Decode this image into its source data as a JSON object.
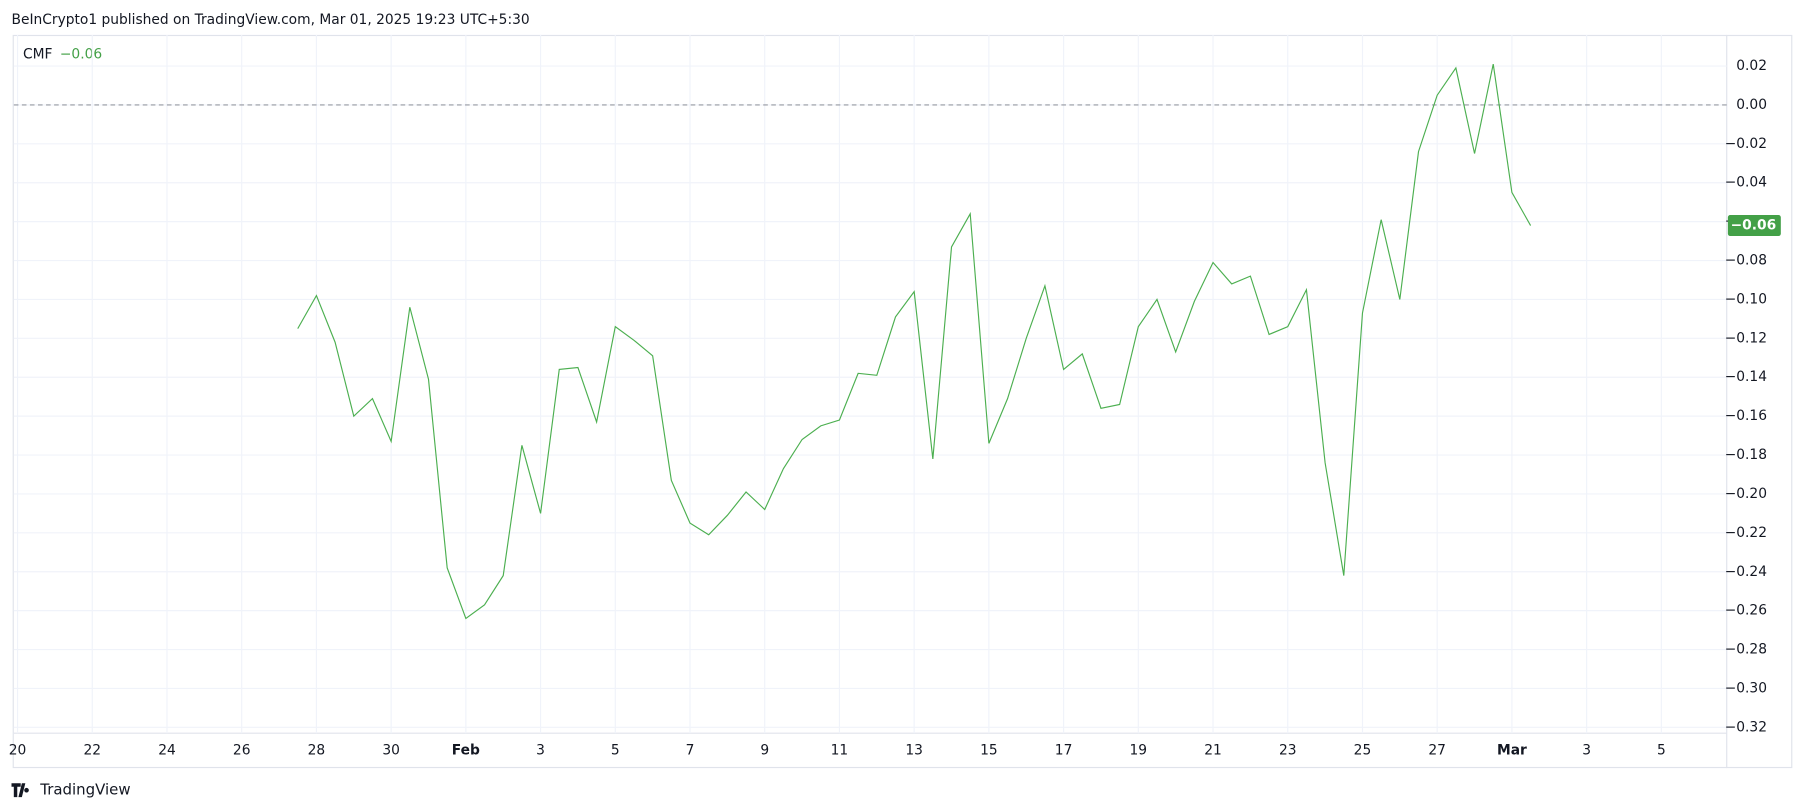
{
  "header": {
    "text": "BeInCrypto1 published on TradingView.com, Mar 01, 2025 19:23 UTC+5:30"
  },
  "footer": {
    "brand": "TradingView"
  },
  "chart_data": {
    "type": "line",
    "indicator": "CMF",
    "current_value_label": "−0.06",
    "series": [
      {
        "name": "CMF",
        "color": "#4caf50",
        "values": [
          -0.115,
          -0.098,
          -0.122,
          -0.16,
          -0.151,
          -0.173,
          -0.104,
          -0.141,
          -0.238,
          -0.264,
          -0.257,
          -0.242,
          -0.175,
          -0.21,
          -0.136,
          -0.135,
          -0.163,
          -0.114,
          -0.121,
          -0.129,
          -0.193,
          -0.215,
          -0.221,
          -0.211,
          -0.199,
          -0.208,
          -0.187,
          -0.172,
          -0.165,
          -0.162,
          -0.138,
          -0.139,
          -0.109,
          -0.096,
          -0.182,
          -0.073,
          -0.056,
          -0.174,
          -0.151,
          -0.12,
          -0.093,
          -0.136,
          -0.128,
          -0.156,
          -0.154,
          -0.114,
          -0.1,
          -0.127,
          -0.101,
          -0.081,
          -0.092,
          -0.088,
          -0.118,
          -0.114,
          -0.095,
          -0.184,
          -0.242,
          -0.107,
          -0.059,
          -0.1,
          -0.024,
          0.005,
          0.019,
          -0.025,
          0.021,
          -0.045,
          -0.062
        ]
      }
    ],
    "tag_color": "#43a047",
    "baseline": 0,
    "xlim": [
      -15.2,
      76.5
    ],
    "xticks": [
      {
        "value": -15,
        "label": "20"
      },
      {
        "value": -11,
        "label": "22"
      },
      {
        "value": -7,
        "label": "24"
      },
      {
        "value": -3,
        "label": "26"
      },
      {
        "value": 1,
        "label": "28"
      },
      {
        "value": 5,
        "label": "30"
      },
      {
        "value": 9,
        "label": "Feb"
      },
      {
        "value": 13,
        "label": "3"
      },
      {
        "value": 17,
        "label": "5"
      },
      {
        "value": 21,
        "label": "7"
      },
      {
        "value": 25,
        "label": "9"
      },
      {
        "value": 29,
        "label": "11"
      },
      {
        "value": 33,
        "label": "13"
      },
      {
        "value": 37,
        "label": "15"
      },
      {
        "value": 41,
        "label": "17"
      },
      {
        "value": 45,
        "label": "19"
      },
      {
        "value": 49,
        "label": "21"
      },
      {
        "value": 53,
        "label": "23"
      },
      {
        "value": 57,
        "label": "25"
      },
      {
        "value": 61,
        "label": "27"
      },
      {
        "value": 65,
        "label": "Mar"
      },
      {
        "value": 69,
        "label": "3"
      },
      {
        "value": 73,
        "label": "5"
      }
    ],
    "ylim": [
      -0.323,
      0.036
    ],
    "yticks": [
      {
        "value": 0.02,
        "label": "0.02"
      },
      {
        "value": 0,
        "label": "0.00"
      },
      {
        "value": -0.02,
        "label": "−0.02"
      },
      {
        "value": -0.04,
        "label": "−0.04"
      },
      {
        "value": -0.06,
        "label": "−0.06"
      },
      {
        "value": -0.08,
        "label": "−0.08"
      },
      {
        "value": -0.1,
        "label": "−0.10"
      },
      {
        "value": -0.12,
        "label": "−0.12"
      },
      {
        "value": -0.14,
        "label": "−0.14"
      },
      {
        "value": -0.16,
        "label": "−0.16"
      },
      {
        "value": -0.18,
        "label": "−0.18"
      },
      {
        "value": -0.2,
        "label": "−0.20"
      },
      {
        "value": -0.22,
        "label": "−0.22"
      },
      {
        "value": -0.24,
        "label": "−0.24"
      },
      {
        "value": -0.26,
        "label": "−0.26"
      },
      {
        "value": -0.28,
        "label": "−0.28"
      },
      {
        "value": -0.3,
        "label": "−0.30"
      },
      {
        "value": -0.32,
        "label": "−0.32"
      }
    ],
    "grid": true
  }
}
